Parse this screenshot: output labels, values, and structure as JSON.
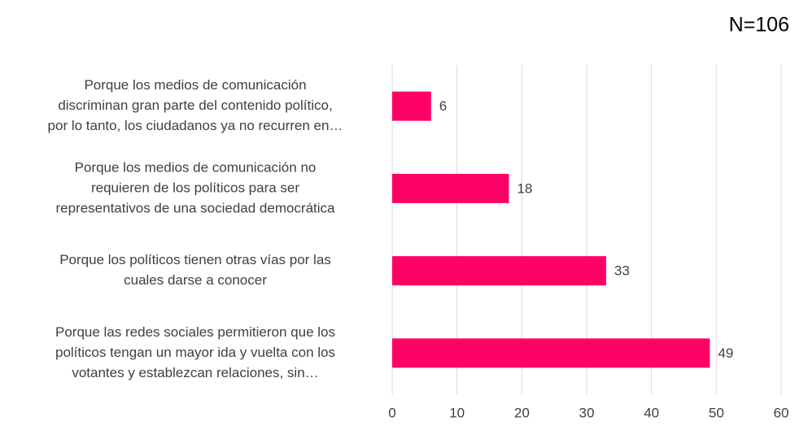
{
  "chart_data": {
    "type": "barh",
    "title": "N=106",
    "categories": [
      [
        "Porque los medios de comunicación",
        "discriminan gran parte del contenido político,",
        "por lo tanto, los ciudadanos ya no recurren en…"
      ],
      [
        "Porque los medios de comunicación no",
        "requieren de los políticos para ser",
        "representativos de una sociedad democrática"
      ],
      [
        "Porque los políticos tienen otras vías por las",
        "cuales darse a conocer"
      ],
      [
        "Porque las redes sociales permitieron que los",
        "políticos tengan un mayor ida y vuelta con los",
        "votantes y establezcan relaciones, sin…"
      ]
    ],
    "values": [
      6,
      18,
      33,
      49
    ],
    "color": "#ff0066",
    "xlim": [
      0,
      60
    ],
    "xticks": [
      0,
      10,
      20,
      30,
      40,
      50,
      60
    ],
    "grid": true
  }
}
